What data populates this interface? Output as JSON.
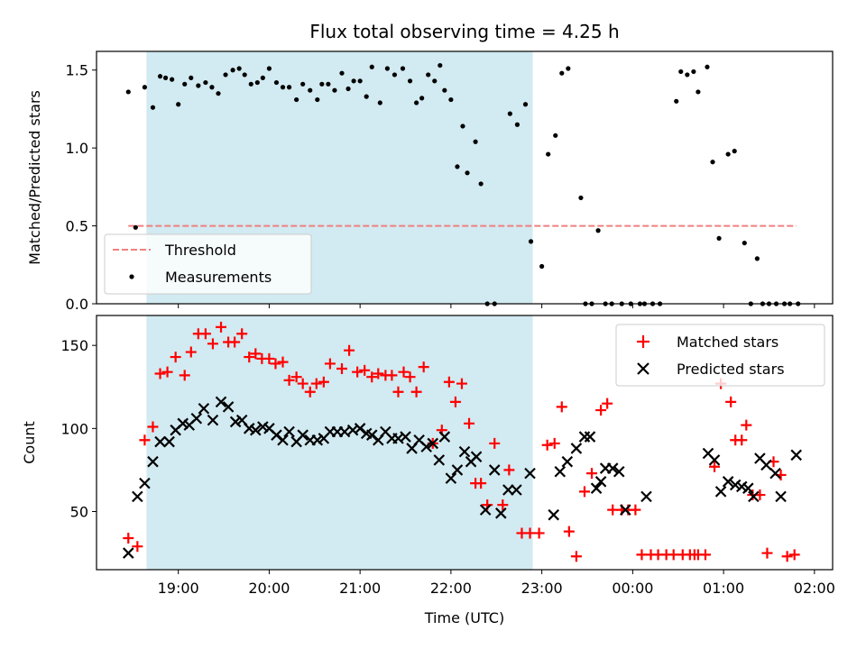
{
  "chart_data": {
    "title": "Flux total observing time = 4.25 h",
    "xlabel": "Time (UTC)",
    "x_unit": "hours (UTC, continuing past midnight; 24 = 00:00 next day)",
    "xlim": [
      18.1,
      26.2
    ],
    "xticks": [
      19,
      20,
      21,
      22,
      23,
      24,
      25,
      26
    ],
    "xtick_labels": [
      "19:00",
      "20:00",
      "21:00",
      "22:00",
      "23:00",
      "00:00",
      "01:00",
      "02:00"
    ],
    "shaded_interval": [
      18.65,
      22.9
    ],
    "shade_color": "#add8e6",
    "panels": [
      {
        "type": "scatter",
        "ylabel": "Matched/Predicted stars",
        "ylim": [
          0,
          1.62
        ],
        "yticks": [
          0.0,
          0.5,
          1.0,
          1.5
        ],
        "ytick_labels": [
          "0.0",
          "0.5",
          "1.0",
          "1.5"
        ],
        "legend": {
          "placement": "lower-left",
          "entries": [
            "Threshold",
            "Measurements"
          ]
        },
        "threshold": {
          "name": "Threshold",
          "y": 0.5,
          "x": [
            18.45,
            25.8
          ],
          "color": "#f08080"
        },
        "series": [
          {
            "name": "Measurements",
            "color": "#000000",
            "x": [
              18.45,
              18.53,
              18.63,
              18.72,
              18.8,
              18.86,
              18.93,
              19.0,
              19.07,
              19.14,
              19.22,
              19.3,
              19.37,
              19.44,
              19.52,
              19.6,
              19.67,
              19.73,
              19.8,
              19.87,
              19.93,
              20.0,
              20.08,
              20.15,
              20.22,
              20.3,
              20.37,
              20.45,
              20.53,
              20.58,
              20.65,
              20.72,
              20.8,
              20.87,
              20.93,
              21.0,
              21.07,
              21.13,
              21.22,
              21.3,
              21.38,
              21.47,
              21.55,
              21.62,
              21.68,
              21.75,
              21.82,
              21.88,
              21.93,
              22.0,
              22.07,
              22.13,
              22.18,
              22.27,
              22.33,
              22.4,
              22.48,
              22.65,
              22.73,
              22.82,
              22.88,
              23.0,
              23.07,
              23.15,
              23.22,
              23.29,
              23.43,
              23.48,
              23.55,
              23.62,
              23.7,
              23.77,
              23.88,
              23.98,
              24.08,
              24.13,
              24.22,
              24.3,
              24.48,
              24.53,
              24.6,
              24.67,
              24.72,
              24.82,
              24.88,
              24.95,
              25.05,
              25.12,
              25.23,
              25.3,
              25.37,
              25.43,
              25.5,
              25.58,
              25.67,
              25.73,
              25.82
            ],
            "y": [
              1.36,
              0.49,
              1.39,
              1.26,
              1.46,
              1.45,
              1.44,
              1.28,
              1.41,
              1.45,
              1.4,
              1.42,
              1.39,
              1.35,
              1.47,
              1.5,
              1.51,
              1.47,
              1.41,
              1.42,
              1.45,
              1.51,
              1.42,
              1.39,
              1.39,
              1.31,
              1.41,
              1.37,
              1.31,
              1.41,
              1.41,
              1.37,
              1.48,
              1.38,
              1.43,
              1.43,
              1.33,
              1.52,
              1.29,
              1.51,
              1.47,
              1.51,
              1.43,
              1.29,
              1.32,
              1.47,
              1.43,
              1.53,
              1.37,
              1.31,
              0.88,
              1.14,
              0.84,
              1.04,
              0.77,
              0.0,
              0.0,
              1.22,
              1.15,
              1.28,
              0.4,
              0.24,
              0.96,
              1.08,
              1.48,
              1.51,
              0.68,
              0.0,
              0.0,
              0.47,
              0.0,
              0.0,
              0.0,
              0.0,
              0.0,
              0.0,
              0.0,
              0.0,
              1.3,
              1.49,
              1.47,
              1.49,
              1.36,
              1.52,
              0.91,
              0.42,
              0.96,
              0.98,
              0.39,
              0.0,
              0.29,
              0.0,
              0.0,
              0.0,
              0.0,
              0.0,
              0.0
            ]
          }
        ]
      },
      {
        "type": "scatter",
        "ylabel": "Count",
        "ylim": [
          15,
          168
        ],
        "yticks": [
          50,
          100,
          150
        ],
        "ytick_labels": [
          "50",
          "100",
          "150"
        ],
        "legend": {
          "placement": "upper-right",
          "entries": [
            "Matched stars",
            "Predicted stars"
          ]
        },
        "series": [
          {
            "name": "Matched stars",
            "color": "#ff0000",
            "marker": "plus",
            "x": [
              18.45,
              18.55,
              18.63,
              18.72,
              18.8,
              18.88,
              18.97,
              19.07,
              19.14,
              19.22,
              19.3,
              19.38,
              19.47,
              19.55,
              19.62,
              19.7,
              19.78,
              19.85,
              19.92,
              20.0,
              20.07,
              20.15,
              20.22,
              20.3,
              20.37,
              20.45,
              20.52,
              20.6,
              20.67,
              20.8,
              20.88,
              20.97,
              21.05,
              21.13,
              21.2,
              21.28,
              21.35,
              21.42,
              21.48,
              21.55,
              21.62,
              21.7,
              21.8,
              21.9,
              21.98,
              22.05,
              22.12,
              22.2,
              22.27,
              22.33,
              22.4,
              22.48,
              22.57,
              22.64,
              22.78,
              22.87,
              22.97,
              23.06,
              23.14,
              23.22,
              23.3,
              23.38,
              23.47,
              23.55,
              23.65,
              23.72,
              23.78,
              23.88,
              23.95,
              24.03,
              24.1,
              24.2,
              24.28,
              24.37,
              24.45,
              24.55,
              24.63,
              24.68,
              24.72,
              24.8,
              24.9,
              24.97,
              25.08,
              25.13,
              25.2,
              25.25,
              25.32,
              25.4,
              25.48,
              25.55,
              25.63,
              25.7,
              25.78
            ],
            "y": [
              34,
              29,
              93,
              101,
              133,
              134,
              143,
              132,
              146,
              157,
              157,
              151,
              161,
              152,
              152,
              157,
              143,
              145,
              142,
              142,
              139,
              140,
              129,
              131,
              127,
              122,
              127,
              128,
              139,
              136,
              147,
              134,
              135,
              131,
              133,
              132,
              132,
              122,
              134,
              131,
              122,
              137,
              91,
              99,
              128,
              116,
              127,
              103,
              67,
              67,
              54,
              91,
              54,
              75,
              37,
              37,
              37,
              90,
              91,
              113,
              38,
              23,
              62,
              73,
              111,
              115,
              51,
              51,
              51,
              51,
              24,
              24,
              24,
              24,
              24,
              24,
              24,
              24,
              24,
              24,
              77,
              127,
              116,
              93,
              93,
              102,
              60,
              60,
              25,
              80,
              72,
              23,
              24
            ],
            "overflow_y_note": "last two points near 24-25"
          },
          {
            "name": "Predicted stars",
            "color": "#000000",
            "marker": "x",
            "x": [
              18.45,
              18.55,
              18.63,
              18.72,
              18.8,
              18.9,
              18.97,
              19.05,
              19.12,
              19.2,
              19.28,
              19.38,
              19.47,
              19.55,
              19.63,
              19.7,
              19.78,
              19.85,
              19.93,
              20.0,
              20.08,
              20.15,
              20.22,
              20.3,
              20.37,
              20.45,
              20.53,
              20.6,
              20.67,
              20.75,
              20.83,
              20.92,
              21.0,
              21.07,
              21.13,
              21.2,
              21.28,
              21.35,
              21.42,
              21.5,
              21.57,
              21.65,
              21.73,
              21.8,
              21.87,
              21.93,
              22.0,
              22.07,
              22.15,
              22.22,
              22.28,
              22.38,
              22.48,
              22.55,
              22.63,
              22.72,
              22.87,
              23.13,
              23.2,
              23.28,
              23.38,
              23.47,
              23.53,
              23.6,
              23.65,
              23.7,
              23.78,
              23.85,
              23.92,
              24.15,
              24.83,
              24.9,
              24.97,
              25.05,
              25.13,
              25.2,
              25.27,
              25.33,
              25.4,
              25.47,
              25.57,
              25.63,
              25.8
            ],
            "y": [
              25,
              59,
              67,
              80,
              92,
              92,
              99,
              103,
              102,
              106,
              112,
              105,
              116,
              113,
              104,
              105,
              100,
              99,
              101,
              100,
              96,
              93,
              98,
              92,
              96,
              93,
              93,
              94,
              98,
              98,
              98,
              99,
              100,
              97,
              96,
              93,
              98,
              94,
              94,
              95,
              88,
              93,
              89,
              91,
              81,
              95,
              70,
              75,
              86,
              80,
              83,
              51,
              75,
              49,
              63,
              63,
              73,
              48,
              74,
              80,
              88,
              95,
              95,
              64,
              68,
              76,
              76,
              74,
              51,
              59,
              85,
              81,
              62,
              68,
              66,
              65,
              64,
              59,
              82,
              78,
              73,
              59,
              84
            ]
          }
        ]
      }
    ]
  }
}
